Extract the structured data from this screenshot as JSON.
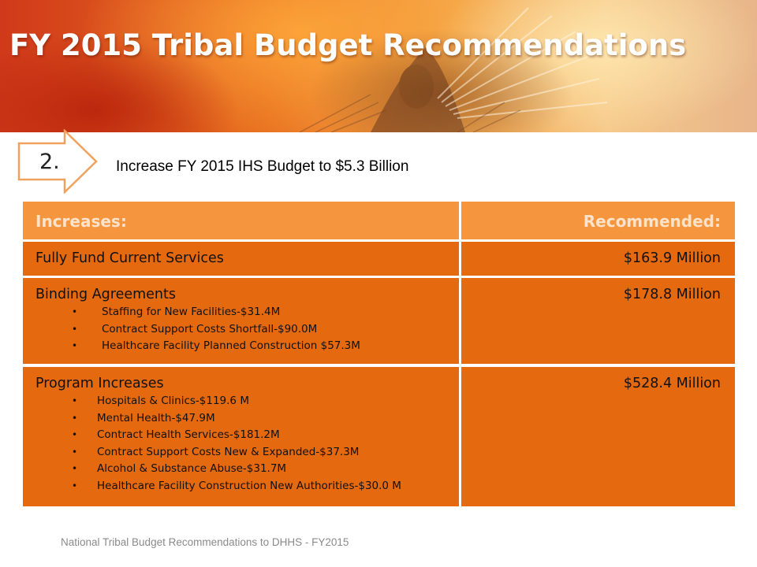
{
  "slide": {
    "title": "FY 2015 Tribal Budget Recommendations",
    "step_number": "2.",
    "subtitle": "Increase FY 2015 IHS Budget to $5.3 Billion",
    "footer": "National Tribal Budget Recommendations to DHHS - FY2015"
  },
  "table": {
    "headers": {
      "left": "Increases:",
      "right": "Recommended:"
    },
    "rows": [
      {
        "label": "Fully Fund Current Services",
        "amount": "$163.9 Million",
        "items": []
      },
      {
        "label": "Binding Agreements",
        "amount": "$178.8 Million",
        "items": [
          "Staffing for New Facilities-$31.4M",
          "Contract Support Costs Shortfall-$90.0M",
          "Healthcare Facility Planned Construction $57.3M"
        ]
      },
      {
        "label": "Program Increases",
        "amount": "$528.4 Million",
        "items": [
          "Hospitals & Clinics-$119.6 M",
          "Mental Health-$47.9M",
          "Contract Health Services-$181.2M",
          "Contract Support Costs New & Expanded-$37.3M",
          "Alcohol & Substance Abuse-$31.7M",
          "Healthcare Facility Construction New Authorities-$30.0 M"
        ]
      }
    ],
    "bullet": "•"
  },
  "colors": {
    "header_fill": "#f5963f",
    "row_fill": "#e5690f",
    "arrow_stroke": "#f0a25c",
    "title_text": "#ffffff"
  },
  "icons": {
    "banner": "feather-dancer-photo",
    "step": "arrow-shape"
  }
}
